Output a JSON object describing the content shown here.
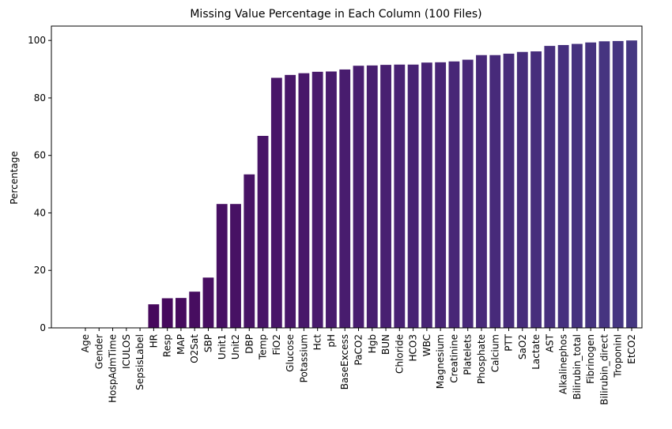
{
  "chart_data": {
    "type": "bar",
    "title": "Missing Value Percentage in Each Column (100 Files)",
    "xlabel": "",
    "ylabel": "Percentage",
    "ylim": [
      0,
      105
    ],
    "yticks": [
      0,
      20,
      40,
      60,
      80,
      100
    ],
    "grid": false,
    "legend": "none",
    "categories": [
      "Age",
      "Gender",
      "HospAdmTime",
      "ICULOS",
      "SepsisLabel",
      "HR",
      "Resp",
      "MAP",
      "O2Sat",
      "SBP",
      "Unit1",
      "Unit2",
      "DBP",
      "Temp",
      "FiO2",
      "Glucose",
      "Potassium",
      "Hct",
      "pH",
      "BaseExcess",
      "PaCO2",
      "Hgb",
      "BUN",
      "Chloride",
      "HCO3",
      "WBC",
      "Magnesium",
      "Creatinine",
      "Platelets",
      "Phosphate",
      "Calcium",
      "PTT",
      "SaO2",
      "Lactate",
      "AST",
      "Alkalinephos",
      "Bilirubin_total",
      "Fibrinogen",
      "Bilirubin_direct",
      "TroponinI",
      "EtCO2"
    ],
    "values": [
      0,
      0,
      0,
      0,
      0,
      8.2,
      10.3,
      10.4,
      12.6,
      17.5,
      43.1,
      43.1,
      53.4,
      66.8,
      87.0,
      88.0,
      88.6,
      89.1,
      89.2,
      89.9,
      91.2,
      91.3,
      91.5,
      91.6,
      91.6,
      92.3,
      92.4,
      92.7,
      93.3,
      94.9,
      94.9,
      95.4,
      96.0,
      96.2,
      98.1,
      98.4,
      98.8,
      99.3,
      99.7,
      99.8,
      100.0
    ],
    "colors": [
      "#440154",
      "#440256",
      "#450457",
      "#450559",
      "#46075a",
      "#46085c",
      "#460a5d",
      "#460b5e",
      "#470d60",
      "#470e61",
      "#471063",
      "#471164",
      "#471365",
      "#481467",
      "#481668",
      "#481769",
      "#48186a",
      "#481a6c",
      "#481b6d",
      "#481c6e",
      "#481d6f",
      "#481f70",
      "#482071",
      "#482173",
      "#482374",
      "#482475",
      "#482576",
      "#482677",
      "#482878",
      "#482979",
      "#472a7a",
      "#472c7a",
      "#472d7b",
      "#472e7c",
      "#472f7d",
      "#46307e",
      "#46327e",
      "#46337f",
      "#463480",
      "#453581",
      "#453781"
    ]
  }
}
